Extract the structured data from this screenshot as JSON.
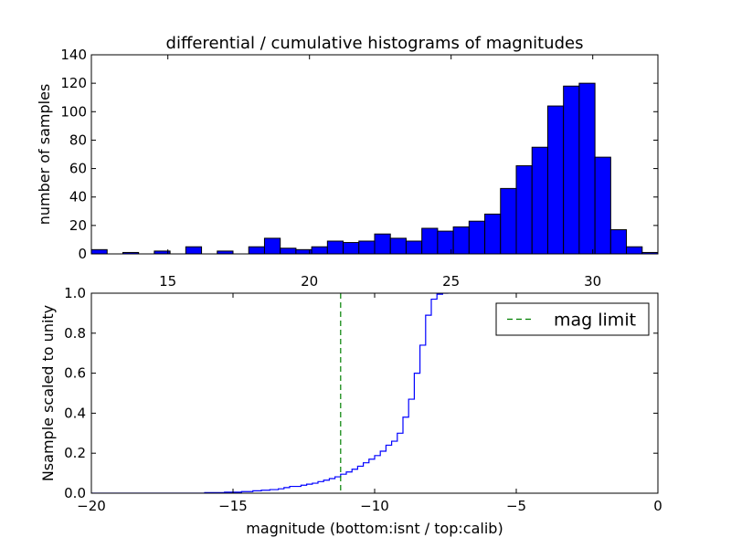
{
  "title": "differential / cumulative histograms of magnitudes",
  "colors": {
    "bars": "#0000ff",
    "cumulative": "#0000ff",
    "limit": "#008000",
    "axes": "#000000"
  },
  "chart_data": [
    {
      "type": "bar",
      "title": "differential / cumulative histograms of magnitudes",
      "xlabel": "",
      "ylabel": "number of samples",
      "xlim": [
        12.3,
        32.3
      ],
      "ylim": [
        0,
        140
      ],
      "x_ticks": [
        15,
        20,
        25,
        30
      ],
      "y_ticks": [
        0,
        20,
        40,
        60,
        80,
        100,
        120,
        140
      ],
      "x_tick_position": "top",
      "bin_width": 0.556,
      "bin_left_edges": [
        12.3,
        12.856,
        13.411,
        13.967,
        14.522,
        15.078,
        15.633,
        16.189,
        16.744,
        17.3,
        17.856,
        18.411,
        18.967,
        19.522,
        20.078,
        20.633,
        21.189,
        21.744,
        22.3,
        22.856,
        23.411,
        23.967,
        24.522,
        25.078,
        25.633,
        26.189,
        26.744,
        27.3,
        27.856,
        28.411,
        28.967,
        29.522,
        30.078,
        30.633,
        31.189,
        31.744
      ],
      "values": [
        3,
        0,
        1,
        0,
        2,
        0,
        5,
        0,
        2,
        0,
        5,
        11,
        4,
        3,
        5,
        9,
        8,
        9,
        14,
        11,
        9,
        18,
        16,
        19,
        23,
        28,
        46,
        62,
        75,
        104,
        118,
        120,
        68,
        17,
        5,
        1
      ],
      "grid": false
    },
    {
      "type": "line",
      "title": "",
      "xlabel": "magnitude (bottom:isnt / top:calib)",
      "ylabel": "Nsample scaled to unity",
      "xlim": [
        -20,
        0
      ],
      "ylim": [
        0,
        1.0
      ],
      "x_ticks": [
        -20,
        -15,
        -10,
        -5,
        0
      ],
      "x_tick_labels": [
        "−20",
        "−15",
        "−10",
        "−5",
        "0"
      ],
      "y_ticks": [
        0.0,
        0.2,
        0.4,
        0.6,
        0.8,
        1.0
      ],
      "y_tick_labels": [
        "0.0",
        "0.2",
        "0.4",
        "0.6",
        "0.8",
        "1.0"
      ],
      "legend": {
        "position": "top-right",
        "entries": [
          "mag limit"
        ]
      },
      "grid": false,
      "series": [
        {
          "type": "step",
          "x": [
            -20,
            -16.0,
            -15.3,
            -14.7,
            -14.3,
            -14.0,
            -13.7,
            -13.4,
            -13.2,
            -13.0,
            -12.6,
            -12.4,
            -12.2,
            -12.0,
            -11.8,
            -11.6,
            -11.4,
            -11.2,
            -11.0,
            -10.8,
            -10.6,
            -10.4,
            -10.2,
            -10.0,
            -9.8,
            -9.6,
            -9.4,
            -9.2,
            -9.0,
            -8.8,
            -8.6,
            -8.4,
            -8.2,
            -8.0,
            -7.8,
            -7.6,
            -7.4
          ],
          "y": [
            0,
            0.003,
            0.005,
            0.008,
            0.012,
            0.015,
            0.018,
            0.022,
            0.028,
            0.034,
            0.04,
            0.045,
            0.05,
            0.058,
            0.065,
            0.073,
            0.082,
            0.095,
            0.106,
            0.12,
            0.135,
            0.152,
            0.17,
            0.188,
            0.21,
            0.24,
            0.26,
            0.3,
            0.38,
            0.47,
            0.6,
            0.74,
            0.89,
            0.97,
            0.995,
            1.0,
            1.0
          ]
        },
        {
          "name": "mag limit",
          "type": "vline",
          "style": "dashed",
          "x": -11.2
        }
      ]
    }
  ]
}
